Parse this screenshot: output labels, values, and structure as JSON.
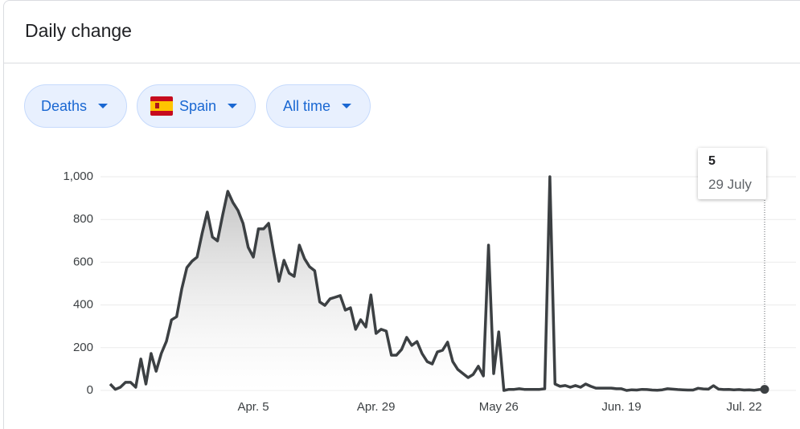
{
  "header": {
    "title": "Daily change"
  },
  "filters": [
    "Deaths",
    "Spain",
    "All time"
  ],
  "chart_data": {
    "type": "area",
    "categories": [
      null,
      null,
      null,
      null,
      null,
      null,
      null,
      null,
      null,
      null,
      null,
      null,
      null,
      null,
      null,
      null,
      null,
      null,
      null,
      null,
      null,
      null,
      null,
      null,
      null,
      null,
      null,
      null,
      "Apr. 5",
      null,
      null,
      null,
      null,
      null,
      null,
      null,
      null,
      null,
      null,
      null,
      null,
      null,
      null,
      null,
      null,
      null,
      null,
      null,
      null,
      null,
      null,
      null,
      "Apr. 29",
      null,
      null,
      null,
      null,
      null,
      null,
      null,
      null,
      null,
      null,
      null,
      null,
      null,
      null,
      null,
      null,
      null,
      null,
      null,
      null,
      null,
      null,
      null,
      "May 26",
      null,
      null,
      null,
      null,
      null,
      null,
      null,
      null,
      null,
      null,
      null,
      null,
      null,
      null,
      null,
      null,
      null,
      null,
      null,
      null,
      null,
      null,
      null,
      "Jun. 19",
      null,
      null,
      null,
      null,
      null,
      null,
      null,
      null,
      null,
      null,
      null,
      null,
      null,
      null,
      null,
      null,
      null,
      null,
      null,
      null,
      null,
      null,
      null,
      "Jul. 22",
      null,
      null,
      null,
      null
    ],
    "values": [
      30,
      5,
      15,
      38,
      38,
      15,
      147,
      30,
      173,
      90,
      173,
      230,
      330,
      345,
      474,
      575,
      605,
      624,
      737,
      835,
      718,
      700,
      820,
      932,
      880,
      842,
      782,
      670,
      624,
      756,
      756,
      782,
      643,
      511,
      609,
      549,
      534,
      680,
      617,
      579,
      560,
      414,
      398,
      429,
      436,
      444,
      376,
      387,
      286,
      331,
      297,
      447,
      267,
      286,
      278,
      165,
      165,
      192,
      248,
      211,
      229,
      173,
      135,
      124,
      180,
      188,
      226,
      135,
      98,
      79,
      60,
      75,
      113,
      68,
      680,
      79,
      274,
      0,
      5,
      5,
      8,
      5,
      5,
      5,
      5,
      8,
      1000,
      30,
      19,
      23,
      15,
      23,
      15,
      30,
      19,
      11,
      11,
      11,
      11,
      8,
      8,
      0,
      3,
      2,
      5,
      4,
      2,
      1,
      3,
      8,
      6,
      4,
      3,
      2,
      2,
      10,
      7,
      6,
      22,
      6,
      4,
      5,
      3,
      4,
      2,
      3,
      1,
      4,
      5
    ],
    "color": "#3c4043",
    "ylim": [
      0,
      1000
    ],
    "yticks": [
      0,
      200,
      400,
      600,
      800,
      {
        "value": 1000,
        "label": "1,000"
      }
    ],
    "grid": true,
    "tooltip_date": "29 July"
  }
}
